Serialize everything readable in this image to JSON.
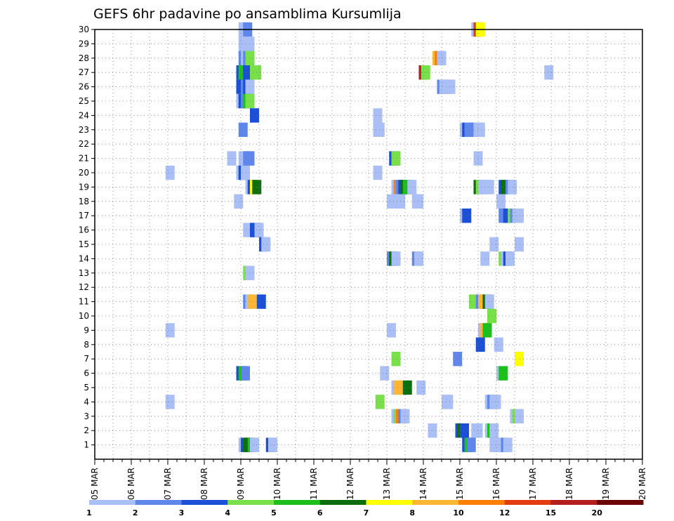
{
  "chart_data": {
    "type": "heatmap",
    "title": "GEFS 6hr padavine po ansamblima Kursumlija",
    "xlabel": "",
    "ylabel": "",
    "x_axis": {
      "start_day": "05 MAR",
      "end_day": "20 MAR",
      "step": "6hr",
      "ticks": [
        "05 MAR",
        "06 MAR",
        "07 MAR",
        "08 MAR",
        "09 MAR",
        "10 MAR",
        "11 MAR",
        "12 MAR",
        "13 MAR",
        "14 MAR",
        "15 MAR",
        "16 MAR",
        "17 MAR",
        "18 MAR",
        "19 MAR",
        "20 MAR"
      ]
    },
    "y_axis": {
      "range": [
        0,
        30
      ],
      "ticks": [
        "1",
        "2",
        "3",
        "4",
        "5",
        "6",
        "7",
        "8",
        "9",
        "10",
        "11",
        "12",
        "13",
        "14",
        "15",
        "16",
        "17",
        "18",
        "19",
        "20",
        "21",
        "22",
        "23",
        "24",
        "25",
        "26",
        "27",
        "28",
        "29",
        "30"
      ]
    },
    "grid": true,
    "colorbar": {
      "levels": [
        "1",
        "2",
        "3",
        "4",
        "5",
        "6",
        "7",
        "8",
        "10",
        "12",
        "15",
        "20"
      ],
      "colors": [
        "#a9bff5",
        "#5f87eb",
        "#1a4fd6",
        "#7ae04a",
        "#1dbf1d",
        "#0d6e0d",
        "#ffff00",
        "#ffb733",
        "#ff7f00",
        "#e23c10",
        "#b31e1e",
        "#6b0505"
      ]
    },
    "cells": [
      [
        20.25,
        30,
        1
      ],
      [
        20.75,
        30,
        2
      ],
      [
        45.75,
        30,
        1
      ],
      [
        46.0,
        30,
        10
      ],
      [
        46.25,
        30,
        7
      ],
      [
        20.25,
        29,
        1
      ],
      [
        20.5,
        29,
        1
      ],
      [
        21.0,
        29,
        1
      ],
      [
        20.25,
        28,
        2
      ],
      [
        20.5,
        28,
        1
      ],
      [
        20.75,
        28,
        2
      ],
      [
        21.0,
        28,
        4
      ],
      [
        41.5,
        28,
        8
      ],
      [
        41.75,
        28,
        9
      ],
      [
        42.0,
        28,
        1
      ],
      [
        20.0,
        27,
        3
      ],
      [
        20.25,
        27,
        5
      ],
      [
        20.5,
        27,
        5
      ],
      [
        20.75,
        27,
        3
      ],
      [
        21.5,
        27,
        4
      ],
      [
        21.75,
        27,
        4
      ],
      [
        40.0,
        27,
        11
      ],
      [
        40.25,
        27,
        4
      ],
      [
        53.75,
        27,
        1
      ],
      [
        20.0,
        26,
        3
      ],
      [
        20.25,
        26,
        3
      ],
      [
        20.5,
        26,
        2
      ],
      [
        20.75,
        26,
        3
      ],
      [
        21.0,
        26,
        1
      ],
      [
        42.0,
        26,
        2
      ],
      [
        42.25,
        26,
        1
      ],
      [
        42.5,
        26,
        1
      ],
      [
        42.75,
        26,
        1
      ],
      [
        43.0,
        26,
        1
      ],
      [
        20.0,
        25,
        1
      ],
      [
        20.25,
        25,
        3
      ],
      [
        20.5,
        25,
        2
      ],
      [
        20.75,
        25,
        5
      ],
      [
        21.0,
        25,
        4
      ],
      [
        21.5,
        24,
        3
      ],
      [
        35.0,
        24,
        1
      ],
      [
        20.25,
        23,
        2
      ],
      [
        35.0,
        23,
        1
      ],
      [
        35.25,
        23,
        1
      ],
      [
        44.5,
        23,
        1
      ],
      [
        44.75,
        23,
        3
      ],
      [
        45.0,
        23,
        2
      ],
      [
        45.25,
        23,
        2
      ],
      [
        45.5,
        23,
        2
      ],
      [
        45.75,
        23,
        2
      ],
      [
        46.0,
        23,
        1
      ],
      [
        46.25,
        23,
        1
      ],
      [
        19.0,
        21,
        1
      ],
      [
        20.25,
        21,
        1
      ],
      [
        20.5,
        21,
        1
      ],
      [
        20.75,
        21,
        2
      ],
      [
        21.0,
        21,
        2
      ],
      [
        36.75,
        21,
        3
      ],
      [
        37.0,
        21,
        4
      ],
      [
        46.0,
        21,
        1
      ],
      [
        12.25,
        20,
        1
      ],
      [
        20.0,
        20,
        1
      ],
      [
        20.25,
        20,
        3
      ],
      [
        20.5,
        20,
        1
      ],
      [
        35.0,
        20,
        1
      ],
      [
        21.0,
        19,
        1
      ],
      [
        21.25,
        19,
        3
      ],
      [
        21.5,
        19,
        7
      ],
      [
        21.75,
        19,
        6
      ],
      [
        37.0,
        19,
        1
      ],
      [
        37.25,
        19,
        9
      ],
      [
        37.5,
        19,
        2
      ],
      [
        37.75,
        19,
        3
      ],
      [
        38.0,
        19,
        6
      ],
      [
        38.25,
        19,
        5
      ],
      [
        38.5,
        19,
        5
      ],
      [
        38.75,
        19,
        1
      ],
      [
        46.0,
        19,
        6
      ],
      [
        46.25,
        19,
        4
      ],
      [
        46.5,
        19,
        1
      ],
      [
        46.75,
        19,
        1
      ],
      [
        47.0,
        19,
        1
      ],
      [
        47.25,
        19,
        1
      ],
      [
        48.75,
        19,
        3
      ],
      [
        49.0,
        19,
        6
      ],
      [
        49.5,
        19,
        2
      ],
      [
        49.75,
        19,
        1
      ],
      [
        19.75,
        18,
        1
      ],
      [
        36.5,
        18,
        1
      ],
      [
        37.5,
        18,
        1
      ],
      [
        39.25,
        18,
        1
      ],
      [
        39.5,
        18,
        1
      ],
      [
        48.5,
        18,
        1
      ],
      [
        44.5,
        17,
        1
      ],
      [
        44.75,
        17,
        3
      ],
      [
        48.75,
        17,
        2
      ],
      [
        49.0,
        17,
        2
      ],
      [
        49.25,
        17,
        3
      ],
      [
        49.5,
        17,
        3
      ],
      [
        49.75,
        17,
        4
      ],
      [
        50.0,
        17,
        2
      ],
      [
        50.25,
        17,
        1
      ],
      [
        50.5,
        17,
        1
      ],
      [
        20.75,
        16,
        1
      ],
      [
        21.5,
        16,
        3
      ],
      [
        21.75,
        16,
        3
      ],
      [
        22.0,
        16,
        1
      ],
      [
        22.5,
        15,
        3
      ],
      [
        22.75,
        15,
        1
      ],
      [
        47.75,
        15,
        1
      ],
      [
        50.5,
        15,
        1
      ],
      [
        36.5,
        14,
        2
      ],
      [
        36.75,
        14,
        6
      ],
      [
        37.0,
        14,
        1
      ],
      [
        39.25,
        14,
        2
      ],
      [
        39.5,
        14,
        1
      ],
      [
        46.75,
        14,
        1
      ],
      [
        48.75,
        14,
        4
      ],
      [
        49.0,
        14,
        1
      ],
      [
        49.25,
        14,
        3
      ],
      [
        49.5,
        14,
        1
      ],
      [
        20.75,
        13,
        4
      ],
      [
        21.0,
        13,
        1
      ],
      [
        20.75,
        11,
        2
      ],
      [
        21.0,
        11,
        1
      ],
      [
        21.25,
        11,
        8
      ],
      [
        22.25,
        11,
        3
      ],
      [
        45.5,
        11,
        4
      ],
      [
        46.25,
        11,
        2
      ],
      [
        46.5,
        11,
        8
      ],
      [
        46.75,
        11,
        8
      ],
      [
        47.0,
        11,
        6
      ],
      [
        47.25,
        11,
        1
      ],
      [
        47.5,
        10,
        4
      ],
      [
        12.25,
        9,
        1
      ],
      [
        36.5,
        9,
        1
      ],
      [
        46.5,
        9,
        1
      ],
      [
        46.75,
        9,
        8
      ],
      [
        47.0,
        9,
        5
      ],
      [
        46.25,
        8,
        3
      ],
      [
        48.25,
        8,
        1
      ],
      [
        37.0,
        7,
        4
      ],
      [
        43.75,
        7,
        2
      ],
      [
        50.5,
        7,
        7
      ],
      [
        20.0,
        6,
        3
      ],
      [
        20.25,
        6,
        5
      ],
      [
        20.5,
        6,
        2
      ],
      [
        35.75,
        6,
        1
      ],
      [
        48.5,
        6,
        1
      ],
      [
        48.75,
        6,
        5
      ],
      [
        37.0,
        5,
        1
      ],
      [
        37.25,
        5,
        8
      ],
      [
        38.25,
        5,
        6
      ],
      [
        39.75,
        5,
        1
      ],
      [
        12.25,
        4,
        1
      ],
      [
        35.25,
        4,
        4
      ],
      [
        42.5,
        4,
        1
      ],
      [
        42.75,
        4,
        1
      ],
      [
        47.25,
        4,
        1
      ],
      [
        47.5,
        4,
        2
      ],
      [
        47.75,
        4,
        1
      ],
      [
        48.0,
        4,
        1
      ],
      [
        37.0,
        3,
        1
      ],
      [
        37.25,
        3,
        4
      ],
      [
        37.5,
        3,
        9
      ],
      [
        37.75,
        3,
        2
      ],
      [
        38.0,
        3,
        1
      ],
      [
        50.0,
        3,
        1
      ],
      [
        50.25,
        3,
        4
      ],
      [
        50.5,
        3,
        1
      ],
      [
        41.0,
        2,
        1
      ],
      [
        44.0,
        2,
        3
      ],
      [
        44.25,
        2,
        6
      ],
      [
        44.5,
        2,
        3
      ],
      [
        45.75,
        2,
        1
      ],
      [
        46.0,
        2,
        1
      ],
      [
        47.25,
        2,
        1
      ],
      [
        47.5,
        2,
        5
      ],
      [
        47.75,
        2,
        1
      ],
      [
        20.25,
        1,
        1
      ],
      [
        20.5,
        1,
        3
      ],
      [
        20.75,
        1,
        6
      ],
      [
        21.0,
        1,
        6
      ],
      [
        21.25,
        1,
        5
      ],
      [
        21.5,
        1,
        1
      ],
      [
        23.25,
        1,
        3
      ],
      [
        23.5,
        1,
        1
      ],
      [
        44.75,
        1,
        3
      ],
      [
        45.0,
        1,
        5
      ],
      [
        45.25,
        1,
        2
      ],
      [
        47.75,
        1,
        1
      ],
      [
        48.0,
        1,
        1
      ],
      [
        48.25,
        1,
        1
      ],
      [
        48.5,
        1,
        1
      ],
      [
        48.75,
        1,
        1
      ],
      [
        49.0,
        1,
        2
      ],
      [
        49.25,
        1,
        1
      ]
    ]
  }
}
